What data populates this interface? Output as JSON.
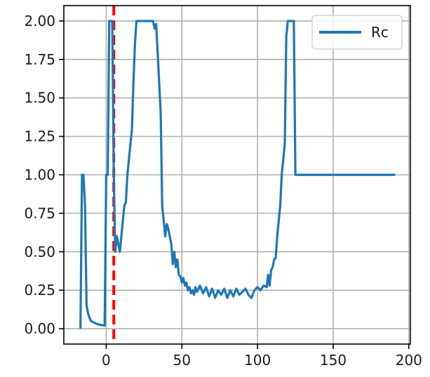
{
  "colors": {
    "series": "#1f77b4",
    "marker": "#ff0000",
    "grid": "#b0b0b0",
    "background": "#ffffff"
  },
  "chart_data": {
    "type": "line",
    "title": "",
    "xlabel": "",
    "ylabel": "",
    "xlim": [
      -28,
      201
    ],
    "ylim": [
      -0.1,
      2.1
    ],
    "xticks": [
      0,
      50,
      100,
      150,
      200
    ],
    "xtick_labels": [
      "0",
      "50",
      "100",
      "150",
      "200"
    ],
    "yticks": [
      0.0,
      0.25,
      0.5,
      0.75,
      1.0,
      1.25,
      1.5,
      1.75,
      2.0
    ],
    "ytick_labels": [
      "0.00",
      "0.25",
      "0.50",
      "0.75",
      "1.00",
      "1.25",
      "1.50",
      "1.75",
      "2.00"
    ],
    "grid": true,
    "legend": {
      "position": "top-right",
      "entries": [
        "Rc"
      ]
    },
    "vertical_line": {
      "x": 5,
      "style": "dashed",
      "color": "#ff0000"
    },
    "series": [
      {
        "name": "Rc",
        "color": "#1f77b4",
        "points": [
          [
            -17,
            0.0
          ],
          [
            -16,
            1.0
          ],
          [
            -15,
            1.0
          ],
          [
            -14,
            0.8
          ],
          [
            -13,
            0.15
          ],
          [
            -12,
            0.1
          ],
          [
            -11,
            0.07
          ],
          [
            -10,
            0.05
          ],
          [
            -8,
            0.04
          ],
          [
            -6,
            0.03
          ],
          [
            -4,
            0.025
          ],
          [
            -1,
            0.02
          ],
          [
            0,
            1.0
          ],
          [
            1,
            1.0
          ],
          [
            2,
            2.0
          ],
          [
            3,
            2.0
          ],
          [
            4,
            2.0
          ],
          [
            5,
            1.0
          ],
          [
            6,
            0.5
          ],
          [
            7,
            0.6
          ],
          [
            8,
            0.55
          ],
          [
            9,
            0.5
          ],
          [
            10,
            0.6
          ],
          [
            11,
            0.7
          ],
          [
            12,
            0.8
          ],
          [
            13,
            0.82
          ],
          [
            14,
            1.0
          ],
          [
            15,
            1.1
          ],
          [
            17,
            1.3
          ],
          [
            18,
            1.6
          ],
          [
            19,
            1.85
          ],
          [
            20,
            2.0
          ],
          [
            22,
            2.0
          ],
          [
            25,
            2.0
          ],
          [
            28,
            2.0
          ],
          [
            31,
            2.0
          ],
          [
            32,
            1.95
          ],
          [
            33,
            1.98
          ],
          [
            34,
            1.8
          ],
          [
            36,
            1.4
          ],
          [
            37,
            0.8
          ],
          [
            38,
            0.7
          ],
          [
            39,
            0.6
          ],
          [
            40,
            0.68
          ],
          [
            41,
            0.65
          ],
          [
            42,
            0.6
          ],
          [
            43,
            0.55
          ],
          [
            44,
            0.42
          ],
          [
            45,
            0.5
          ],
          [
            46,
            0.4
          ],
          [
            47,
            0.45
          ],
          [
            48,
            0.35
          ],
          [
            49,
            0.34
          ],
          [
            50,
            0.3
          ],
          [
            51,
            0.33
          ],
          [
            52,
            0.28
          ],
          [
            53,
            0.3
          ],
          [
            54,
            0.25
          ],
          [
            55,
            0.27
          ],
          [
            56,
            0.23
          ],
          [
            57,
            0.25
          ],
          [
            58,
            0.22
          ],
          [
            59,
            0.27
          ],
          [
            60,
            0.24
          ],
          [
            62,
            0.28
          ],
          [
            64,
            0.23
          ],
          [
            66,
            0.27
          ],
          [
            68,
            0.21
          ],
          [
            70,
            0.26
          ],
          [
            72,
            0.2
          ],
          [
            74,
            0.25
          ],
          [
            76,
            0.22
          ],
          [
            78,
            0.26
          ],
          [
            80,
            0.2
          ],
          [
            82,
            0.25
          ],
          [
            84,
            0.21
          ],
          [
            86,
            0.26
          ],
          [
            88,
            0.22
          ],
          [
            90,
            0.24
          ],
          [
            92,
            0.26
          ],
          [
            94,
            0.22
          ],
          [
            96,
            0.2
          ],
          [
            98,
            0.25
          ],
          [
            100,
            0.27
          ],
          [
            102,
            0.25
          ],
          [
            104,
            0.28
          ],
          [
            106,
            0.27
          ],
          [
            107,
            0.35
          ],
          [
            108,
            0.28
          ],
          [
            109,
            0.38
          ],
          [
            110,
            0.4
          ],
          [
            111,
            0.45
          ],
          [
            112,
            0.46
          ],
          [
            113,
            0.6
          ],
          [
            114,
            0.7
          ],
          [
            115,
            0.8
          ],
          [
            116,
            1.0
          ],
          [
            117,
            1.1
          ],
          [
            118,
            1.2
          ],
          [
            119,
            1.9
          ],
          [
            120,
            2.0
          ],
          [
            122,
            2.0
          ],
          [
            124,
            2.0
          ],
          [
            125,
            1.0
          ],
          [
            130,
            1.0
          ],
          [
            150,
            1.0
          ],
          [
            170,
            1.0
          ],
          [
            191,
            1.0
          ]
        ]
      }
    ]
  }
}
